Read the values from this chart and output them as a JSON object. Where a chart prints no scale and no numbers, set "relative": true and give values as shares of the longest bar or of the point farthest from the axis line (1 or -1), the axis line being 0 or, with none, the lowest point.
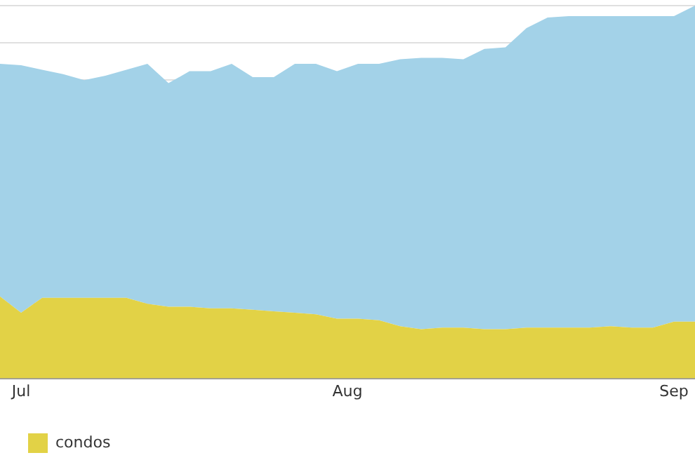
{
  "chart_data": {
    "type": "area",
    "relative": true,
    "stacked": true,
    "grid": "y",
    "legend": "bottom",
    "x": [
      "--06-29",
      "--07-01",
      "--07-03",
      "--07-05",
      "--07-07",
      "--07-09",
      "--07-11",
      "--07-13",
      "--07-15",
      "--07-17",
      "--07-19",
      "--07-21",
      "--07-23",
      "--07-25",
      "--07-27",
      "--07-29",
      "--07-31",
      "--08-02",
      "--08-04",
      "--08-06",
      "--08-08",
      "--08-10",
      "--08-12",
      "--08-14",
      "--08-16",
      "--08-18",
      "--08-20",
      "--08-22",
      "--08-24",
      "--08-26",
      "--08-28",
      "--08-30",
      "--09-01",
      "--09-03"
    ],
    "xlim": [
      "--06-29",
      "--09-03"
    ],
    "xticks": [
      {
        "value": "--07-01",
        "label": "Jul"
      },
      {
        "value": "--08-01",
        "label": "Aug"
      },
      {
        "value": "--09-01",
        "label": "Sep"
      }
    ],
    "series": [
      {
        "name": "condos",
        "color": "#e2d246",
        "values": [
          0.22,
          0.176,
          0.216,
          0.216,
          0.216,
          0.216,
          0.216,
          0.2,
          0.192,
          0.192,
          0.188,
          0.188,
          0.184,
          0.18,
          0.176,
          0.172,
          0.16,
          0.16,
          0.156,
          0.14,
          0.132,
          0.136,
          0.136,
          0.132,
          0.132,
          0.136,
          0.136,
          0.136,
          0.136,
          0.14,
          0.136,
          0.136,
          0.152,
          0.152
        ]
      },
      {
        "color": "#a3d2e8",
        "values": [
          0.624,
          0.664,
          0.612,
          0.6,
          0.584,
          0.596,
          0.612,
          0.644,
          0.6,
          0.632,
          0.636,
          0.656,
          0.624,
          0.628,
          0.668,
          0.672,
          0.664,
          0.684,
          0.688,
          0.716,
          0.728,
          0.724,
          0.72,
          0.752,
          0.756,
          0.804,
          0.832,
          0.836,
          0.836,
          0.832,
          0.836,
          0.836,
          0.82,
          0.848
        ]
      }
    ]
  }
}
